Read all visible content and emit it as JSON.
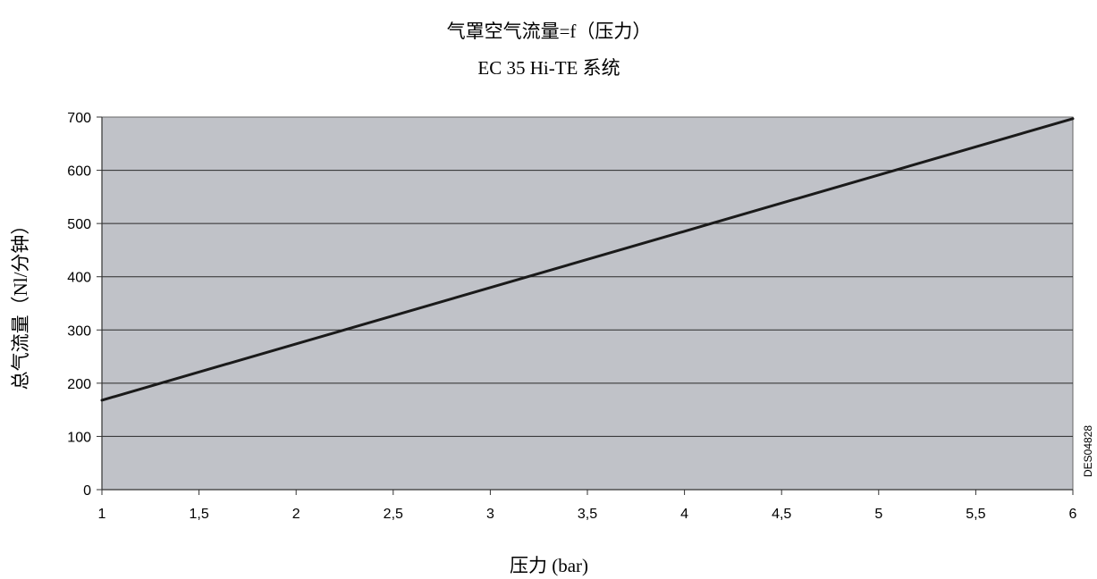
{
  "chart_data": {
    "type": "line",
    "title": "气罩空气流量=f（压力）",
    "subtitle": "EC 35 Hi-TE 系统",
    "xlabel": "压力 (bar)",
    "ylabel": "总气流量（Nl/分钟）",
    "xlim": [
      1,
      6
    ],
    "ylim": [
      0,
      700
    ],
    "x_ticks": [
      "1",
      "1,5",
      "2",
      "2,5",
      "3",
      "3,5",
      "4",
      "4,5",
      "5",
      "5,5",
      "6"
    ],
    "y_ticks": [
      "0",
      "100",
      "200",
      "300",
      "400",
      "500",
      "600",
      "700"
    ],
    "grid": "horizontal",
    "plot_background": "#c0c2c8",
    "line_color": "#1a1a1a",
    "series": [
      {
        "x": [
          1,
          6
        ],
        "y": [
          168,
          697
        ]
      }
    ],
    "annotation": "DES04828"
  }
}
